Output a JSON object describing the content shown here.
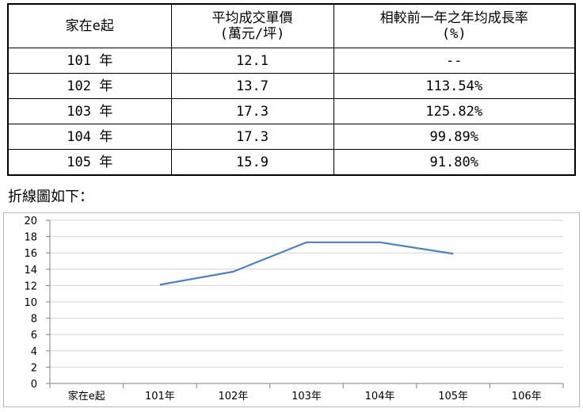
{
  "table": {
    "headers": [
      [
        "家在e起"
      ],
      [
        "平均成交單價",
        "(萬元/坪)"
      ],
      [
        "相較前一年之年均成長率",
        "(%)"
      ]
    ],
    "rows": [
      [
        "101 年",
        "12.1",
        "--"
      ],
      [
        "102 年",
        "13.7",
        "113.54%"
      ],
      [
        "103 年",
        "17.3",
        "125.82%"
      ],
      [
        "104 年",
        "17.3",
        "99.89%"
      ],
      [
        "105 年",
        "15.9",
        "91.80%"
      ]
    ]
  },
  "caption": "折線圖如下：",
  "chart_data": {
    "type": "line",
    "categories": [
      "家在e起",
      "101年",
      "102年",
      "103年",
      "104年",
      "105年",
      "106年"
    ],
    "series": [
      {
        "values": [
          null,
          12.1,
          13.7,
          17.3,
          17.3,
          15.9,
          null
        ],
        "color": "#4f81bd"
      }
    ],
    "yticks": [
      "0",
      "2",
      "4",
      "6",
      "8",
      "10",
      "12",
      "14",
      "16",
      "18",
      "20"
    ],
    "ylim": [
      0,
      20
    ],
    "grid": true
  }
}
